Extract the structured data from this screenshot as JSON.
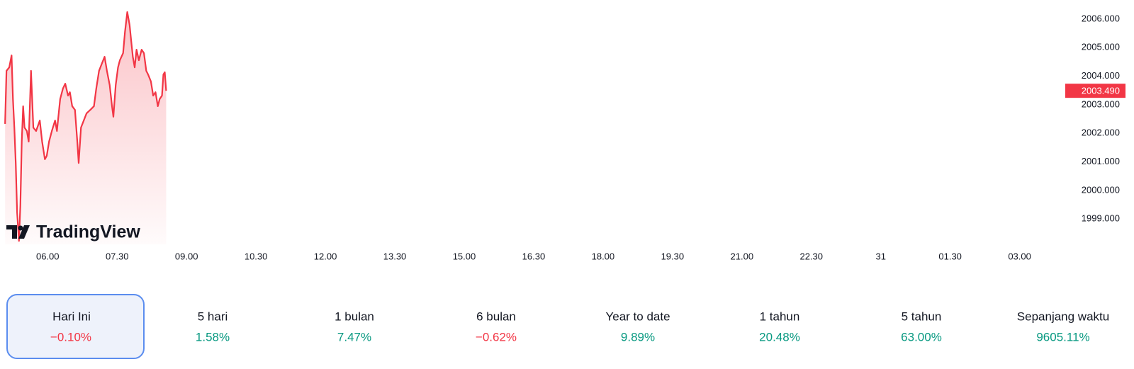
{
  "chart_data": {
    "type": "line",
    "watermark": "TradingView",
    "color": "#f23645",
    "x": [
      5.08,
      5.11,
      5.17,
      5.22,
      5.25,
      5.28,
      5.31,
      5.34,
      5.38,
      5.41,
      5.44,
      5.47,
      5.5,
      5.55,
      5.59,
      5.64,
      5.69,
      5.75,
      5.83,
      5.88,
      5.94,
      5.98,
      6.03,
      6.09,
      6.16,
      6.2,
      6.27,
      6.33,
      6.38,
      6.44,
      6.48,
      6.53,
      6.59,
      6.64,
      6.67,
      6.72,
      6.78,
      6.84,
      6.92,
      7.0,
      7.05,
      7.11,
      7.17,
      7.23,
      7.28,
      7.34,
      7.39,
      7.42,
      7.47,
      7.52,
      7.56,
      7.63,
      7.67,
      7.72,
      7.77,
      7.8,
      7.84,
      7.88,
      7.92,
      7.97,
      8.03,
      8.08,
      8.13,
      8.17,
      8.23,
      8.28,
      8.33,
      8.38,
      8.42,
      8.47,
      8.5,
      8.53,
      8.56
    ],
    "values": [
      2002.33,
      2004.19,
      2004.31,
      2004.73,
      2003.2,
      2002.2,
      2000.96,
      1999.22,
      1998.23,
      1999.47,
      2001.71,
      2002.95,
      2002.2,
      2002.08,
      2001.71,
      2004.19,
      2002.2,
      2002.08,
      2002.45,
      2001.71,
      2001.09,
      2001.21,
      2001.71,
      2002.08,
      2002.45,
      2002.08,
      2003.2,
      2003.57,
      2003.74,
      2003.32,
      2003.44,
      2002.95,
      2002.82,
      2001.71,
      2000.96,
      2002.2,
      2002.45,
      2002.7,
      2002.82,
      2002.95,
      2003.57,
      2004.19,
      2004.44,
      2004.68,
      2004.19,
      2003.69,
      2002.95,
      2002.58,
      2003.69,
      2004.31,
      2004.56,
      2004.81,
      2005.55,
      2006.25,
      2005.8,
      2005.31,
      2004.68,
      2004.31,
      2004.93,
      2004.56,
      2004.93,
      2004.81,
      2004.19,
      2004.06,
      2003.82,
      2003.32,
      2003.44,
      2002.95,
      2003.2,
      2003.32,
      2004.06,
      2004.14,
      2003.49
    ],
    "xlim": [
      4.97,
      27.94
    ],
    "xticks": [
      {
        "value": 6,
        "label": "06.00"
      },
      {
        "value": 7.5,
        "label": "07.30"
      },
      {
        "value": 9,
        "label": "09.00"
      },
      {
        "value": 10.5,
        "label": "10.30"
      },
      {
        "value": 12,
        "label": "12.00"
      },
      {
        "value": 13.5,
        "label": "13.30"
      },
      {
        "value": 15,
        "label": "15.00"
      },
      {
        "value": 16.5,
        "label": "16.30"
      },
      {
        "value": 18,
        "label": "18.00"
      },
      {
        "value": 19.5,
        "label": "19.30"
      },
      {
        "value": 21,
        "label": "21.00"
      },
      {
        "value": 22.5,
        "label": "22.30"
      },
      {
        "value": 24,
        "label": "31"
      },
      {
        "value": 25.5,
        "label": "01.30"
      },
      {
        "value": 27,
        "label": "03.00"
      }
    ],
    "ylim": [
      1998.11,
      2006.67
    ],
    "yticks": [
      {
        "value": 1999,
        "label": "1999.000"
      },
      {
        "value": 2000,
        "label": "2000.000"
      },
      {
        "value": 2001,
        "label": "2001.000"
      },
      {
        "value": 2002,
        "label": "2002.000"
      },
      {
        "value": 2003,
        "label": "2003.000"
      },
      {
        "value": 2004,
        "label": "2004.000"
      },
      {
        "value": 2005,
        "label": "2005.000"
      },
      {
        "value": 2006,
        "label": "2006.000"
      }
    ],
    "last_price": {
      "value": 2003.49,
      "label": "2003.490"
    }
  },
  "periods": [
    {
      "label": "Hari Ini",
      "change": "−0.10%",
      "color": "#f23645",
      "selected": true
    },
    {
      "label": "5 hari",
      "change": "1.58%",
      "color": "#089981"
    },
    {
      "label": "1 bulan",
      "change": "7.47%",
      "color": "#089981"
    },
    {
      "label": "6 bulan",
      "change": "−0.62%",
      "color": "#f23645"
    },
    {
      "label": "Year to date",
      "change": "9.89%",
      "color": "#089981"
    },
    {
      "label": "1 tahun",
      "change": "20.48%",
      "color": "#089981"
    },
    {
      "label": "5 tahun",
      "change": "63.00%",
      "color": "#089981"
    },
    {
      "label": "Sepanjang waktu",
      "change": "9605.11%",
      "color": "#089981"
    }
  ]
}
